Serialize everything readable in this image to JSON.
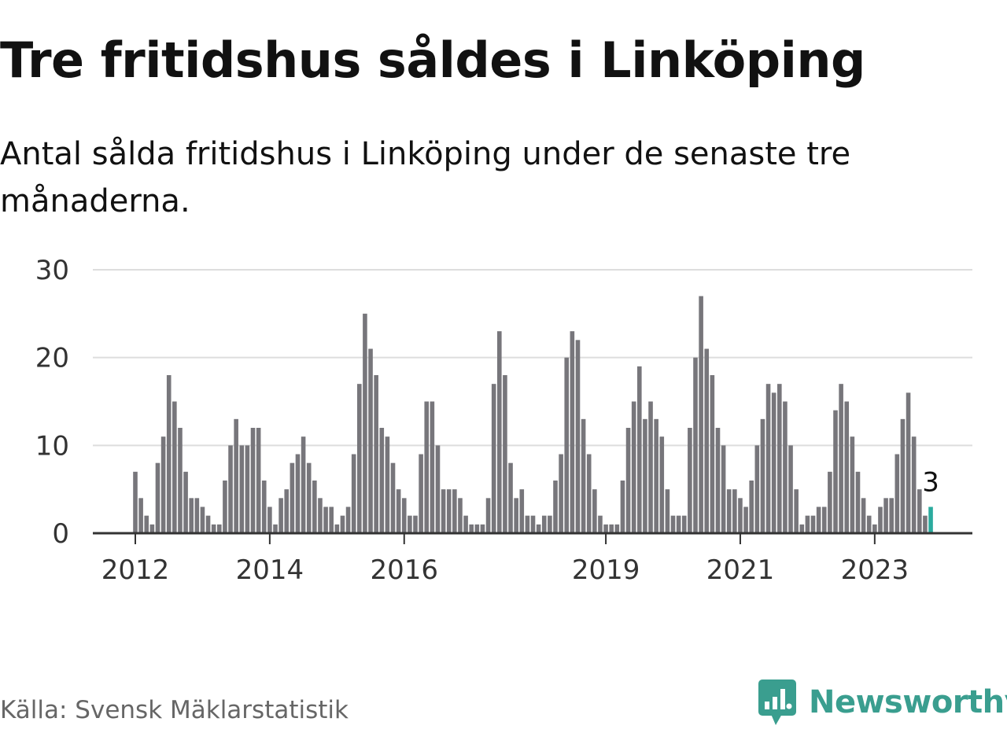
{
  "title": "Tre fritidshus såldes i Linköping",
  "subtitle": "Antal sålda fritidshus i Linköping under de senaste tre månaderna.",
  "source": "Källa: Svensk Mäklarstatistik",
  "brand": "Newsworthy",
  "colors": {
    "bar": "#77767b",
    "highlight": "#2bab9e",
    "grid": "#dddddd",
    "axis": "#333333",
    "brand": "#3a9e8f"
  },
  "chart_data": {
    "type": "bar",
    "start": "2012-01",
    "values": [
      7,
      4,
      2,
      1,
      8,
      11,
      18,
      15,
      12,
      7,
      4,
      4,
      3,
      2,
      1,
      1,
      6,
      10,
      13,
      10,
      10,
      12,
      12,
      6,
      3,
      1,
      4,
      5,
      8,
      9,
      11,
      8,
      6,
      4,
      3,
      3,
      1,
      2,
      3,
      9,
      17,
      25,
      21,
      18,
      12,
      11,
      8,
      5,
      4,
      2,
      2,
      9,
      15,
      15,
      10,
      5,
      5,
      5,
      4,
      2,
      1,
      1,
      1,
      4,
      17,
      23,
      18,
      8,
      4,
      5,
      2,
      2,
      1,
      2,
      2,
      6,
      9,
      20,
      23,
      22,
      13,
      9,
      5,
      2,
      1,
      1,
      1,
      6,
      12,
      15,
      19,
      13,
      15,
      13,
      11,
      5,
      2,
      2,
      2,
      12,
      20,
      27,
      21,
      18,
      12,
      10,
      5,
      5,
      4,
      3,
      6,
      10,
      13,
      17,
      16,
      17,
      15,
      10,
      5,
      1,
      2,
      2,
      3,
      3,
      7,
      14,
      17,
      15,
      11,
      7,
      4,
      2,
      1,
      3,
      4,
      4,
      9,
      13,
      16,
      11,
      5,
      2,
      3
    ],
    "x_ticks": [
      {
        "label": "2012",
        "year": 2012
      },
      {
        "label": "2014",
        "year": 2014
      },
      {
        "label": "2016",
        "year": 2016
      },
      {
        "label": "2019",
        "year": 2019
      },
      {
        "label": "2021",
        "year": 2021
      },
      {
        "label": "2023",
        "year": 2023
      }
    ],
    "y_ticks": [
      "0",
      "10",
      "20",
      "30"
    ],
    "ylim": [
      0,
      30
    ],
    "grid": true,
    "highlight_last": true,
    "last_label": "3"
  }
}
